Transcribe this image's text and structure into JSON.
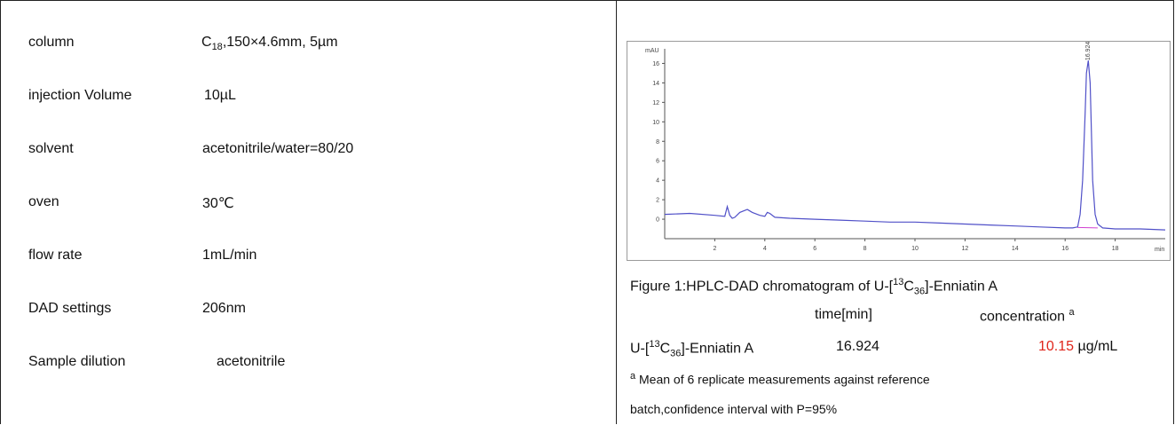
{
  "params": [
    {
      "label": "column",
      "value_prefix": "C",
      "value_sub": "18",
      "value_suffix": ",150×4.6mm, 5µm"
    },
    {
      "label": "injection Volume",
      "value": "10µL"
    },
    {
      "label": "solvent",
      "value": "acetonitrile/water=80/20"
    },
    {
      "label": "oven",
      "value": "30℃"
    },
    {
      "label": "flow rate",
      "value": "1mL/min"
    },
    {
      "label": "DAD settings",
      "value": "206nm"
    },
    {
      "label": "Sample dilution",
      "value": "acetonitrile"
    }
  ],
  "chart_data": {
    "type": "line",
    "ylabel": "mAU",
    "xlabel": "min",
    "x_ticks": [
      "2",
      "4",
      "6",
      "8",
      "10",
      "12",
      "14",
      "16",
      "18"
    ],
    "y_ticks": [
      "0",
      "2",
      "4",
      "6",
      "8",
      "10",
      "12",
      "14",
      "16"
    ],
    "xlim": [
      0,
      20
    ],
    "ylim": [
      -2,
      17.5
    ],
    "peak_label": "16.924",
    "line_color": "#5050c8",
    "baseline_color": "#d040d0",
    "series": [
      {
        "x": [
          0,
          1,
          2,
          2.4,
          2.5,
          2.6,
          2.7,
          2.8,
          3.0,
          3.2,
          3.3,
          3.5,
          3.8,
          4.0,
          4.1,
          4.2,
          4.4,
          5,
          6,
          7,
          8,
          9,
          10,
          11,
          12,
          13,
          14,
          15,
          16,
          16.3,
          16.5,
          16.6,
          16.7,
          16.8,
          16.85,
          16.924,
          17.0,
          17.05,
          17.1,
          17.2,
          17.3,
          17.5,
          18,
          19,
          20
        ],
        "y": [
          0.5,
          0.6,
          0.4,
          0.3,
          1.3,
          0.4,
          0.1,
          0.2,
          0.7,
          0.9,
          1.0,
          0.7,
          0.4,
          0.3,
          0.7,
          0.6,
          0.2,
          0.1,
          0.0,
          -0.1,
          -0.2,
          -0.3,
          -0.3,
          -0.4,
          -0.5,
          -0.6,
          -0.7,
          -0.8,
          -0.9,
          -0.9,
          -0.8,
          0.5,
          4,
          11,
          15,
          16.3,
          14,
          9,
          4,
          0.5,
          -0.5,
          -0.9,
          -1.0,
          -1.0,
          -1.1
        ]
      }
    ]
  },
  "caption": {
    "prefix": "Figure 1:HPLC-DAD chromatogram of U-[",
    "sup": "13",
    "mid": "C",
    "sub": "36",
    "suffix": "]-Enniatin A"
  },
  "results": {
    "header_time": "time[min]",
    "header_conc": "concentration",
    "header_conc_sup": "a",
    "compound_prefix": "U-[",
    "compound_sup": "13",
    "compound_mid": "C",
    "compound_sub": "36",
    "compound_suffix": "]-Enniatin A",
    "time": "16.924",
    "concentration": "10.15",
    "unit": "µg/mL"
  },
  "note": {
    "sup": "a",
    "line1": "Mean of 6 replicate measurements against reference",
    "line2": "batch,confidence interval with P=95%"
  }
}
